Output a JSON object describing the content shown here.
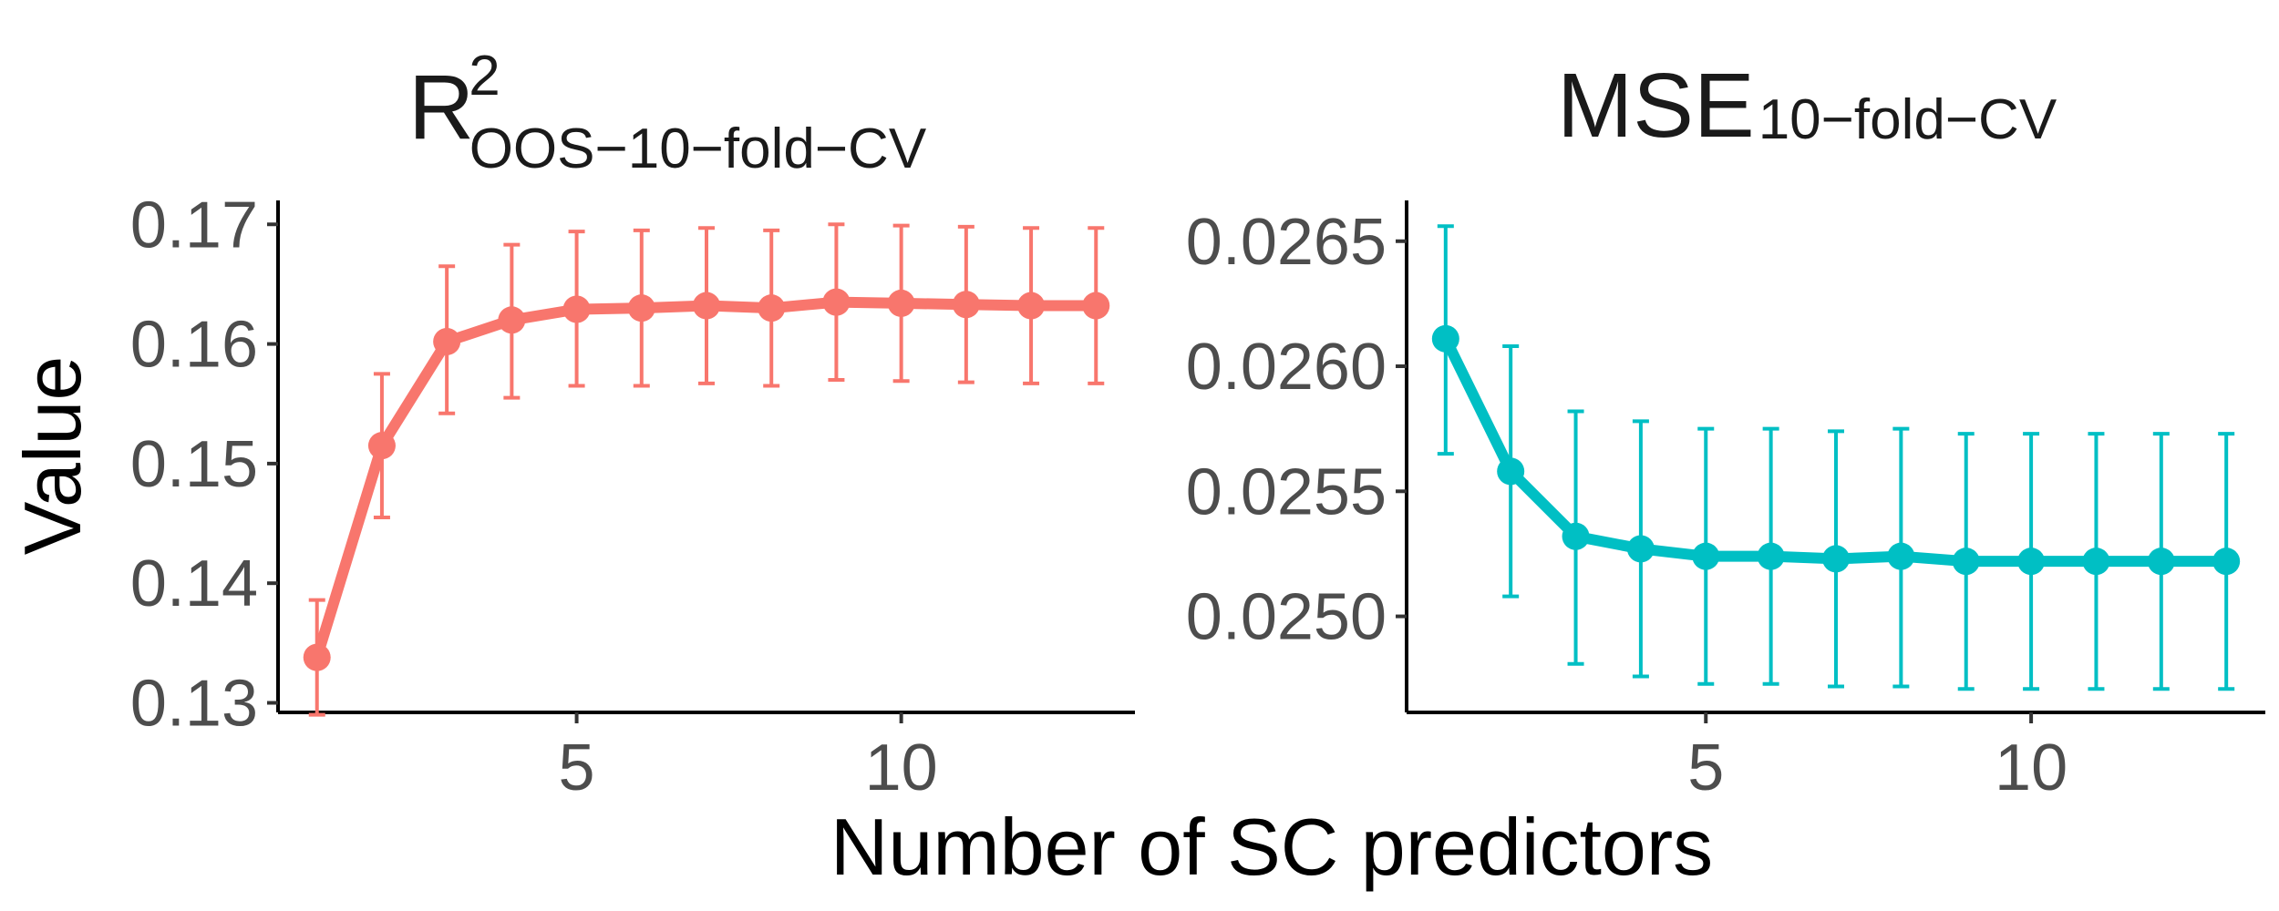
{
  "figure": {
    "xlabel": "Number of SC predictors",
    "ylabel": "Value"
  },
  "panel_left": {
    "title_main": "R",
    "title_sup": "2",
    "title_sub": "OOS−10−fold−CV"
  },
  "panel_right": {
    "title_main": "MSE",
    "title_sub": "10−fold−CV"
  },
  "chart_data": [
    {
      "type": "line",
      "color": "#F8766D",
      "x": [
        1,
        2,
        3,
        4,
        5,
        6,
        7,
        8,
        9,
        10,
        11,
        12,
        13
      ],
      "y": [
        0.1338,
        0.1515,
        0.1602,
        0.162,
        0.1629,
        0.163,
        0.1632,
        0.163,
        0.1635,
        0.1634,
        0.1633,
        0.1632,
        0.1632
      ],
      "y_low": [
        0.129,
        0.1455,
        0.1542,
        0.1555,
        0.1565,
        0.1565,
        0.1567,
        0.1565,
        0.157,
        0.1569,
        0.1568,
        0.1567,
        0.1567
      ],
      "y_high": [
        0.1386,
        0.1575,
        0.1665,
        0.1683,
        0.1694,
        0.1695,
        0.1697,
        0.1695,
        0.17,
        0.1699,
        0.1698,
        0.1697,
        0.1697
      ],
      "xlim": [
        0.4,
        13.6
      ],
      "ylim": [
        0.1292,
        0.172
      ],
      "x_ticks": [
        5,
        10
      ],
      "x_tick_labels": [
        "5",
        "10"
      ],
      "y_ticks": [
        0.13,
        0.14,
        0.15,
        0.16,
        0.17
      ],
      "y_tick_labels": [
        "0.13",
        "0.14",
        "0.15",
        "0.16",
        "0.17"
      ]
    },
    {
      "type": "line",
      "color": "#00BFC4",
      "x": [
        1,
        2,
        3,
        4,
        5,
        6,
        7,
        8,
        9,
        10,
        11,
        12,
        13
      ],
      "y": [
        0.02611,
        0.02558,
        0.02532,
        0.02527,
        0.02524,
        0.02524,
        0.02523,
        0.02524,
        0.02522,
        0.02522,
        0.02522,
        0.02522,
        0.02522
      ],
      "y_low": [
        0.02565,
        0.02508,
        0.02481,
        0.02476,
        0.02473,
        0.02473,
        0.02472,
        0.02472,
        0.02471,
        0.02471,
        0.02471,
        0.02471,
        0.02471
      ],
      "y_high": [
        0.02656,
        0.02608,
        0.02582,
        0.02578,
        0.02575,
        0.02575,
        0.02574,
        0.02575,
        0.02573,
        0.02573,
        0.02573,
        0.02573,
        0.02573
      ],
      "xlim": [
        0.4,
        13.6
      ],
      "ylim": [
        0.024616,
        0.026663
      ],
      "x_ticks": [
        5,
        10
      ],
      "x_tick_labels": [
        "5",
        "10"
      ],
      "y_ticks": [
        0.025,
        0.0255,
        0.026,
        0.0265
      ],
      "y_tick_labels": [
        "0.0250",
        "0.0255",
        "0.0260",
        "0.0265"
      ]
    }
  ]
}
